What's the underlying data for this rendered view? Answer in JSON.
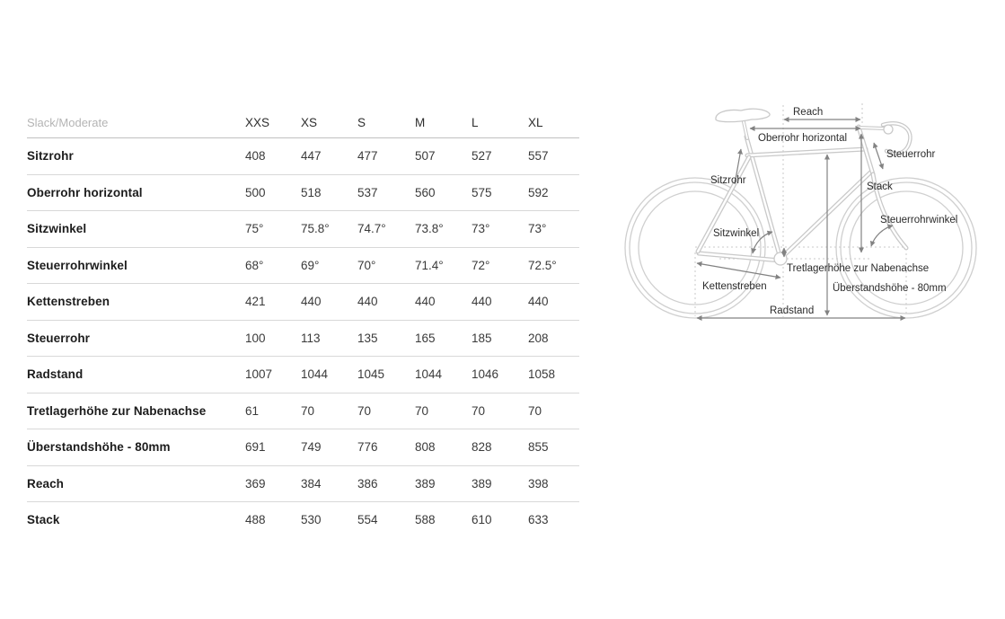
{
  "table": {
    "title": "Slack/Moderate",
    "columns": [
      "XXS",
      "XS",
      "S",
      "M",
      "L",
      "XL"
    ],
    "rows": [
      {
        "label": "Sitzrohr",
        "values": [
          "408",
          "447",
          "477",
          "507",
          "527",
          "557"
        ]
      },
      {
        "label": "Oberrohr horizontal",
        "values": [
          "500",
          "518",
          "537",
          "560",
          "575",
          "592"
        ]
      },
      {
        "label": "Sitzwinkel",
        "values": [
          "75°",
          "75.8°",
          "74.7°",
          "73.8°",
          "73°",
          "73°"
        ]
      },
      {
        "label": "Steuerrohrwinkel",
        "values": [
          "68°",
          "69°",
          "70°",
          "71.4°",
          "72°",
          "72.5°"
        ]
      },
      {
        "label": "Kettenstreben",
        "values": [
          "421",
          "440",
          "440",
          "440",
          "440",
          "440"
        ]
      },
      {
        "label": "Steuerrohr",
        "values": [
          "100",
          "113",
          "135",
          "165",
          "185",
          "208"
        ]
      },
      {
        "label": "Radstand",
        "values": [
          "1007",
          "1044",
          "1045",
          "1044",
          "1046",
          "1058"
        ]
      },
      {
        "label": "Tretlagerhöhe zur Nabenachse",
        "values": [
          "61",
          "70",
          "70",
          "70",
          "70",
          "70"
        ]
      },
      {
        "label": "Überstandshöhe - 80mm",
        "values": [
          "691",
          "749",
          "776",
          "808",
          "828",
          "855"
        ]
      },
      {
        "label": "Reach",
        "values": [
          "369",
          "384",
          "386",
          "389",
          "389",
          "398"
        ]
      },
      {
        "label": "Stack",
        "values": [
          "488",
          "530",
          "554",
          "588",
          "610",
          "633"
        ]
      }
    ]
  },
  "diagram": {
    "labels": {
      "reach": "Reach",
      "oberrohr": "Oberrohr horizontal",
      "steuerrohr": "Steuerrohr",
      "stack": "Stack",
      "sitzrohr": "Sitzrohr",
      "sitzwinkel": "Sitzwinkel",
      "steuerrohrwinkel": "Steuerrohrwinkel",
      "tretlagerhoehe": "Tretlagerhöhe zur Nabenachse",
      "kettenstreben": "Kettenstreben",
      "ueberstandshoehe": "Überstandshöhe - 80mm",
      "radstand": "Radstand"
    }
  },
  "colors": {
    "background": "#ffffff",
    "label_text": "#1c1c1c",
    "value_text": "#3a3a3a",
    "muted_header_text": "#b4b4b4",
    "row_divider": "#d8d8d8",
    "header_divider": "#c0c0c0",
    "bike_outline": "#c9c9c9",
    "dimension_arrow": "#828282",
    "diagram_text": "#2b2b2b"
  }
}
